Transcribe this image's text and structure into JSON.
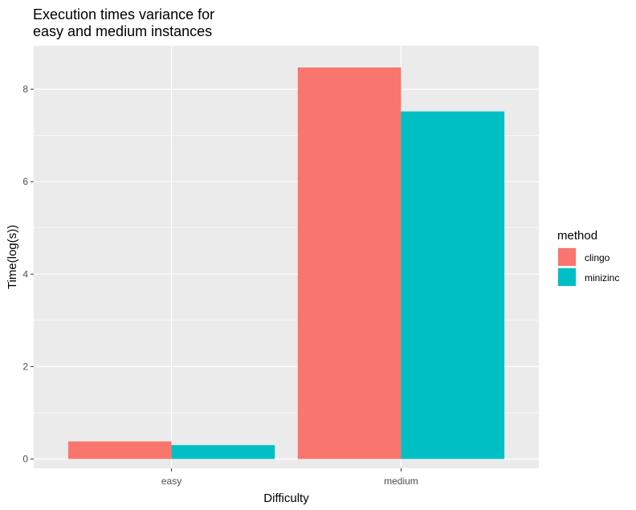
{
  "chart_data": {
    "type": "bar",
    "title_lines": [
      "Execution times variance for",
      "easy and medium instances"
    ],
    "xlabel": "Difficulty",
    "ylabel": "Time(log(s))",
    "categories": [
      "easy",
      "medium"
    ],
    "series": [
      {
        "name": "clingo",
        "values": [
          0.38,
          8.47
        ],
        "color": "#F8766D"
      },
      {
        "name": "minizinc",
        "values": [
          0.3,
          7.52
        ],
        "color": "#00BFC4"
      }
    ],
    "ylim": [
      -0.2,
      8.94
    ],
    "yticks": [
      0,
      2,
      4,
      6,
      8
    ],
    "yticks_minor": [
      1,
      3,
      5,
      7
    ],
    "legend": {
      "title": "method",
      "position": "right"
    },
    "grid": true,
    "panel_background": "#EBEBEB",
    "grid_color": "#FFFFFF"
  }
}
